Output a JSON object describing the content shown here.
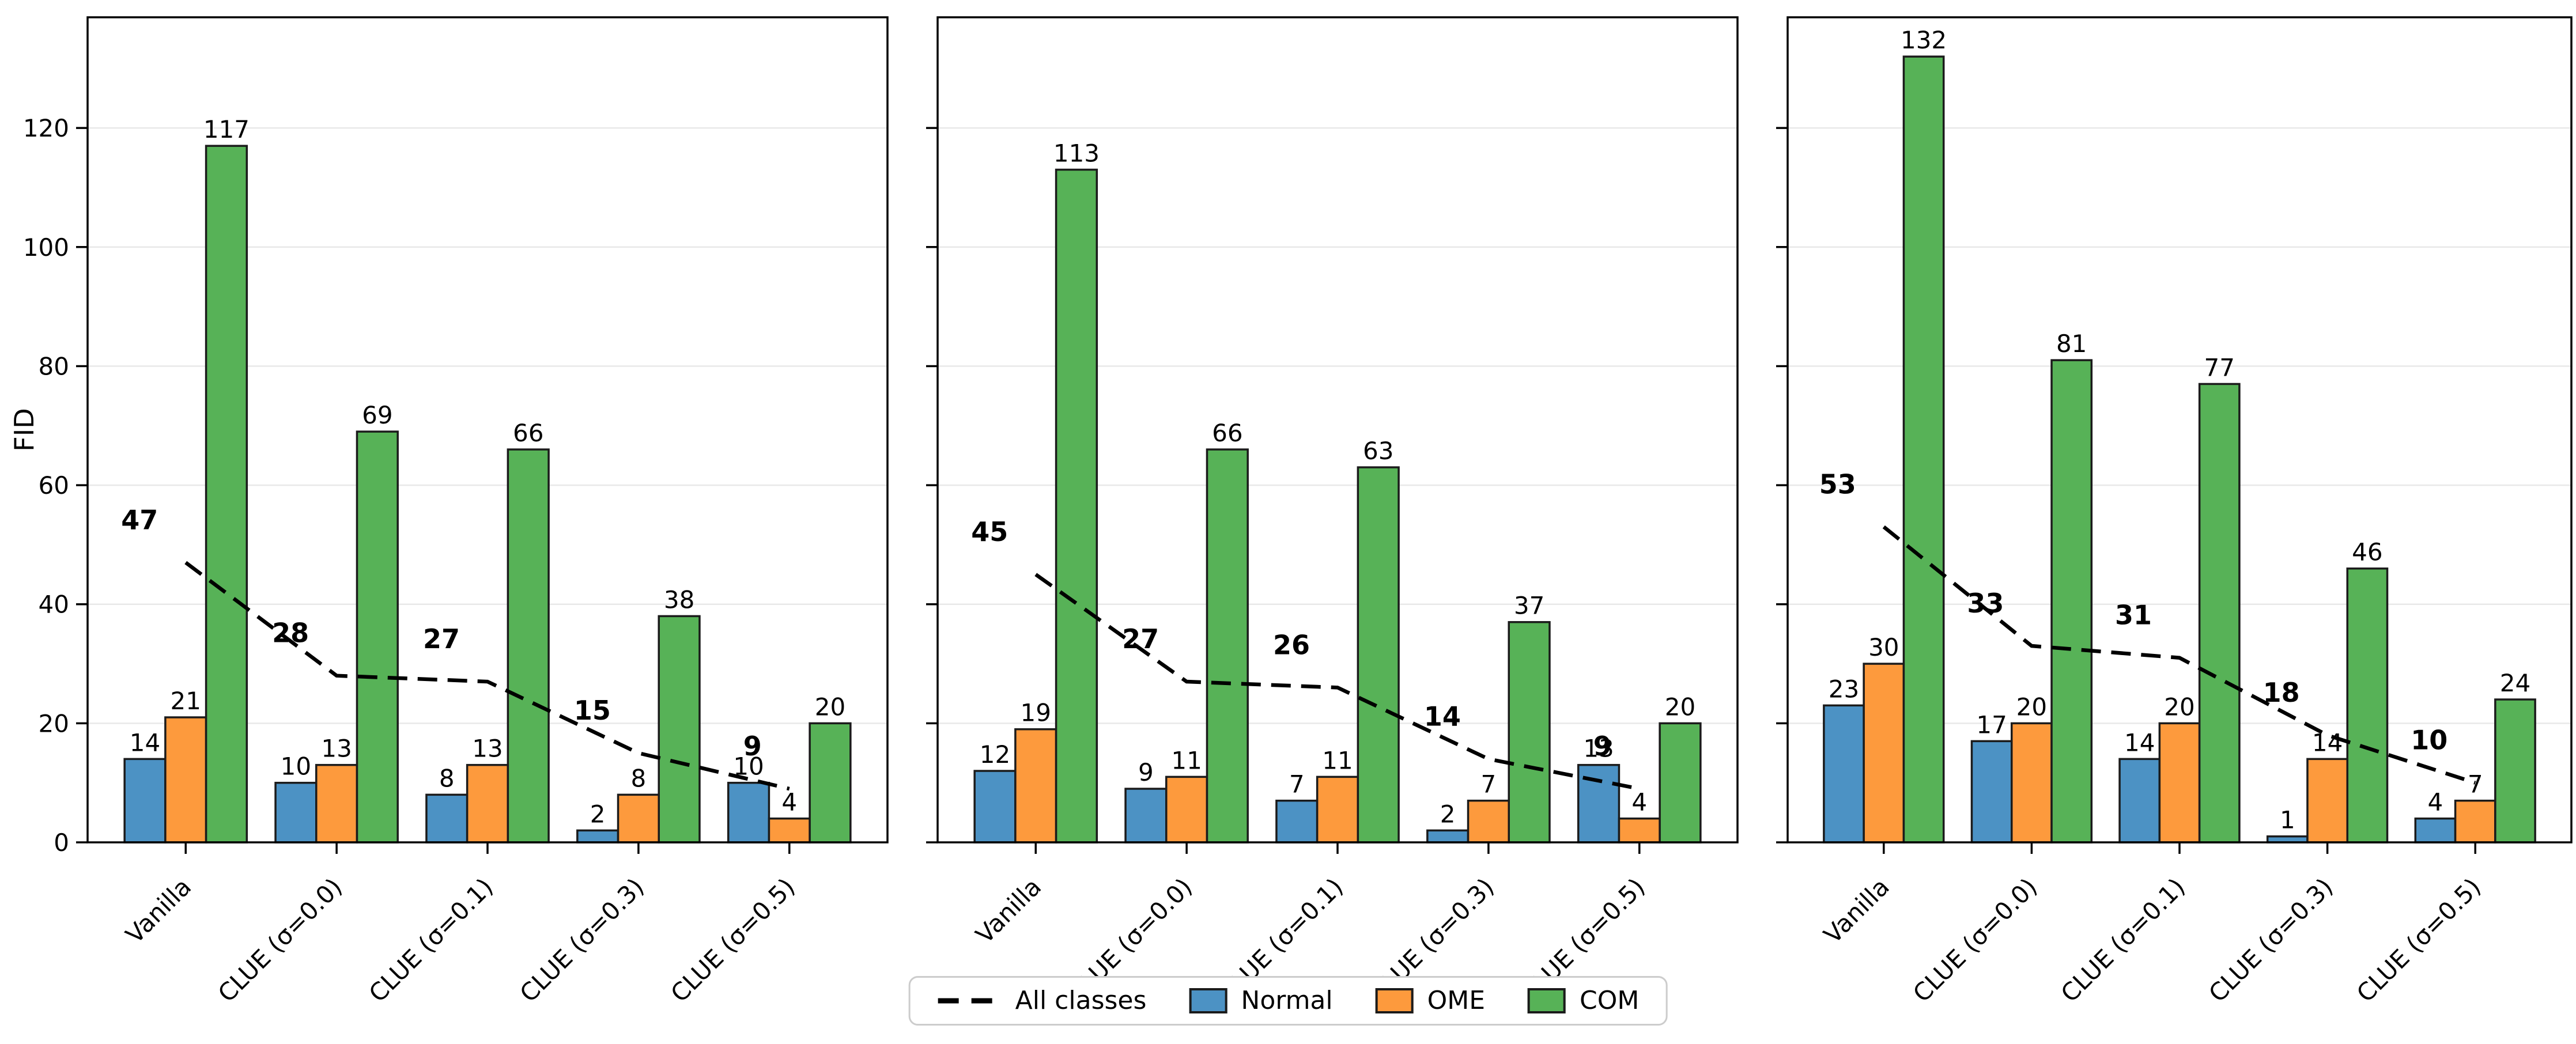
{
  "figure": {
    "ylabel": "FID",
    "yticks": [
      0,
      20,
      40,
      60,
      80,
      100,
      120
    ],
    "ylim": [
      0,
      138.6
    ],
    "colors": {
      "normal": "#4C92C4",
      "ome": "#FD9A3D",
      "com": "#57B257",
      "line": "#000000",
      "edge": "#1b1b1b",
      "grid": "#e8e8e8",
      "spine": "#000000",
      "text": "#000000"
    },
    "legend": [
      {
        "label": "All classes",
        "swatch": "dashed-line"
      },
      {
        "label": "Normal",
        "swatch": "normal"
      },
      {
        "label": "OME",
        "swatch": "ome"
      },
      {
        "label": "COM",
        "swatch": "com"
      }
    ]
  },
  "chart_data": [
    {
      "type": "bar",
      "panel": "left",
      "categories": [
        "Vanilla",
        "CLUE (σ=0.0)",
        "CLUE (σ=0.1)",
        "CLUE (σ=0.3)",
        "CLUE (σ=0.5)"
      ],
      "series": [
        {
          "name": "Normal",
          "values": [
            14,
            10,
            8,
            2,
            10
          ]
        },
        {
          "name": "OME",
          "values": [
            21,
            13,
            13,
            8,
            4
          ]
        },
        {
          "name": "COM",
          "values": [
            117,
            69,
            66,
            38,
            20
          ]
        }
      ],
      "line_series": {
        "name": "All classes",
        "values": [
          47,
          28,
          27,
          15,
          9
        ]
      },
      "xlabel": "",
      "ylabel": "FID",
      "ylim": [
        0,
        138.6
      ],
      "grid": true,
      "ytick_labels_visible": true,
      "legend_position": "bottom-center"
    },
    {
      "type": "bar",
      "panel": "middle",
      "categories": [
        "Vanilla",
        "CLUE (σ=0.0)",
        "CLUE (σ=0.1)",
        "CLUE (σ=0.3)",
        "CLUE (σ=0.5)"
      ],
      "series": [
        {
          "name": "Normal",
          "values": [
            12,
            9,
            7,
            2,
            13
          ]
        },
        {
          "name": "OME",
          "values": [
            19,
            11,
            11,
            7,
            4
          ]
        },
        {
          "name": "COM",
          "values": [
            113,
            66,
            63,
            37,
            20
          ]
        }
      ],
      "line_series": {
        "name": "All classes",
        "values": [
          45,
          27,
          26,
          14,
          9
        ]
      },
      "xlabel": "",
      "ylabel": "",
      "ylim": [
        0,
        138.6
      ],
      "grid": true,
      "ytick_labels_visible": false,
      "legend_position": "bottom-center"
    },
    {
      "type": "bar",
      "panel": "right",
      "categories": [
        "Vanilla",
        "CLUE (σ=0.0)",
        "CLUE (σ=0.1)",
        "CLUE (σ=0.3)",
        "CLUE (σ=0.5)"
      ],
      "series": [
        {
          "name": "Normal",
          "values": [
            23,
            17,
            14,
            1,
            4
          ]
        },
        {
          "name": "OME",
          "values": [
            30,
            20,
            20,
            14,
            7
          ]
        },
        {
          "name": "COM",
          "values": [
            132,
            81,
            77,
            46,
            24
          ]
        }
      ],
      "line_series": {
        "name": "All classes",
        "values": [
          53,
          33,
          31,
          18,
          10
        ]
      },
      "xlabel": "",
      "ylabel": "",
      "ylim": [
        0,
        138.6
      ],
      "grid": true,
      "ytick_labels_visible": false,
      "legend_position": "bottom-center"
    }
  ]
}
